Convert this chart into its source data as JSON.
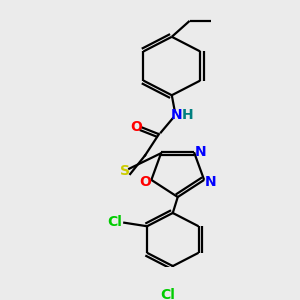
{
  "background_color": "#ebebeb",
  "bond_color": "#000000",
  "bond_width": 1.6,
  "figsize": [
    3.0,
    3.0
  ],
  "dpi": 100,
  "colors": {
    "N": "#0000ff",
    "H": "#008080",
    "O": "#ff0000",
    "S": "#cccc00",
    "Cl": "#00cc00"
  }
}
